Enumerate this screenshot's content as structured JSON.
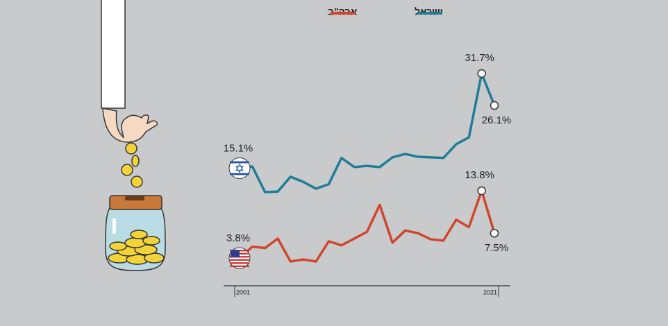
{
  "chart_data": {
    "type": "line",
    "categories": [
      "2001",
      null,
      null,
      null,
      null,
      null,
      null,
      null,
      null,
      null,
      null,
      null,
      null,
      null,
      null,
      null,
      null,
      null,
      null,
      null,
      "2021"
    ],
    "series": [
      {
        "name": "ישראל",
        "color": "#1f7d96",
        "values": [
          15.1,
          15.4,
          10.9,
          11.0,
          13.6,
          12.7,
          11.5,
          12.3,
          16.9,
          15.3,
          15.5,
          15.3,
          17.0,
          17.6,
          17.1,
          17.0,
          16.9,
          19.3,
          20.5,
          31.7,
          26.1
        ],
        "value_labels": [
          "15.1%",
          null,
          null,
          null,
          null,
          null,
          null,
          null,
          null,
          null,
          null,
          null,
          null,
          null,
          null,
          null,
          null,
          null,
          null,
          "31.7%",
          "26.1%"
        ]
      },
      {
        "name": "ארה\"ב",
        "color": "#d0452b",
        "values": [
          3.8,
          5.5,
          5.3,
          6.7,
          3.3,
          3.6,
          3.3,
          6.3,
          5.7,
          6.7,
          7.7,
          11.7,
          6.1,
          7.9,
          7.5,
          6.6,
          6.4,
          9.5,
          8.4,
          13.8,
          7.5
        ],
        "value_labels": [
          "3.8%",
          null,
          null,
          null,
          null,
          null,
          null,
          null,
          null,
          null,
          null,
          null,
          null,
          null,
          null,
          null,
          null,
          null,
          null,
          "13.8%",
          "7.5%"
        ]
      }
    ]
  }
}
